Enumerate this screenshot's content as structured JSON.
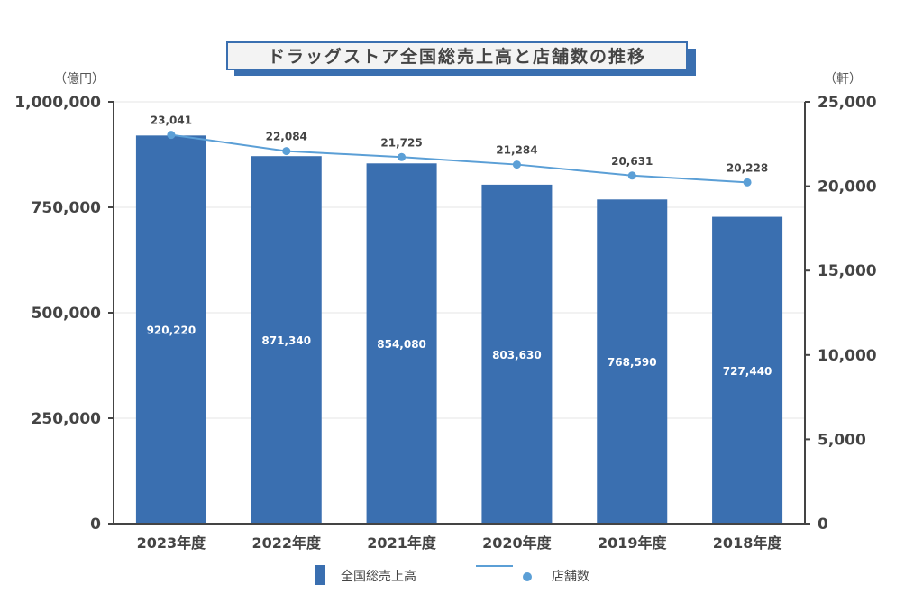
{
  "chart_data": {
    "type": "bar+line",
    "title": "ドラッグストア全国総売上高と店舗数の推移",
    "categories": [
      "2023年度",
      "2022年度",
      "2021年度",
      "2020年度",
      "2019年度",
      "2018年度"
    ],
    "y_left": {
      "unit": "（億円）",
      "range": [
        0,
        1000000
      ],
      "ticks": [
        "0",
        "250,000",
        "500,000",
        "750,000",
        "1,000,000"
      ],
      "tick_values": [
        0,
        250000,
        500000,
        750000,
        1000000
      ]
    },
    "y_right": {
      "unit": "（軒）",
      "range": [
        0,
        25000
      ],
      "ticks": [
        "0",
        "5,000",
        "10,000",
        "15,000",
        "20,000",
        "25,000"
      ],
      "tick_values": [
        0,
        5000,
        10000,
        15000,
        20000,
        25000
      ]
    },
    "series": [
      {
        "name": "全国総売上高",
        "type": "bar",
        "axis": "left",
        "color": "#3a6fb0",
        "values": [
          920220,
          871340,
          854080,
          803630,
          768590,
          727440
        ],
        "labels": [
          "920,220",
          "871,340",
          "854,080",
          "803,630",
          "768,590",
          "727,440"
        ]
      },
      {
        "name": "店舗数",
        "type": "line",
        "axis": "right",
        "color": "#5b9fd6",
        "values": [
          23041,
          22084,
          21725,
          21284,
          20631,
          20228
        ],
        "labels": [
          "23,041",
          "22,084",
          "21,725",
          "21,284",
          "20,631",
          "20,228"
        ]
      }
    ],
    "grid": true,
    "legend": "bottom"
  }
}
